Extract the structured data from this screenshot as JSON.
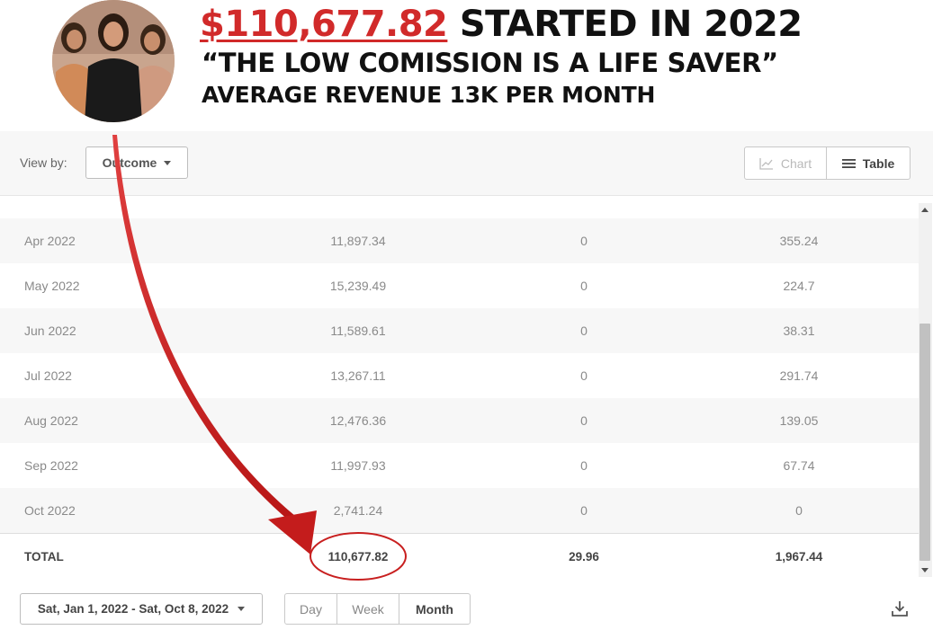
{
  "banner": {
    "amount": "$110,677.82",
    "headline_rest": " STARTED IN 2022",
    "quote": "“THE LOW COMISSION IS A LIFE SAVER”",
    "average": "AVERAGE REVENUE 13K PER MONTH"
  },
  "toolbar": {
    "view_by_label": "View by:",
    "outcome_label": "Outcome",
    "chart_label": "Chart",
    "table_label": "Table"
  },
  "table": {
    "rows": [
      {
        "month": "Apr 2022",
        "col1": "11,897.34",
        "col2": "0",
        "col3": "355.24"
      },
      {
        "month": "May 2022",
        "col1": "15,239.49",
        "col2": "0",
        "col3": "224.7"
      },
      {
        "month": "Jun 2022",
        "col1": "11,589.61",
        "col2": "0",
        "col3": "38.31"
      },
      {
        "month": "Jul 2022",
        "col1": "13,267.11",
        "col2": "0",
        "col3": "291.74"
      },
      {
        "month": "Aug 2022",
        "col1": "12,476.36",
        "col2": "0",
        "col3": "139.05"
      },
      {
        "month": "Sep 2022",
        "col1": "11,997.93",
        "col2": "0",
        "col3": "67.74"
      },
      {
        "month": "Oct 2022",
        "col1": "2,741.24",
        "col2": "0",
        "col3": "0"
      }
    ],
    "total": {
      "label": "TOTAL",
      "col1": "110,677.82",
      "col2": "29.96",
      "col3": "1,967.44"
    }
  },
  "footer": {
    "date_range": "Sat, Jan 1, 2022 - Sat, Oct 8, 2022",
    "periods": [
      "Day",
      "Week",
      "Month"
    ]
  },
  "icons": {
    "chart": "line-chart-icon",
    "table": "list-icon",
    "download": "download-icon"
  },
  "colors": {
    "accent_red": "#d12a2a",
    "headline_text": "#111111"
  }
}
